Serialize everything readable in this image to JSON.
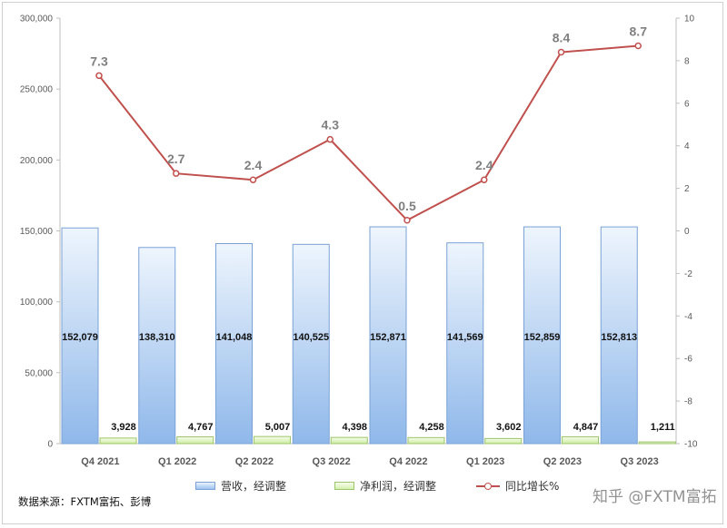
{
  "chart_data": {
    "type": "bar",
    "categories": [
      "Q4 2021",
      "Q1 2022",
      "Q2 2022",
      "Q3 2022",
      "Q4 2022",
      "Q1 2023",
      "Q2 2023",
      "Q3 2023"
    ],
    "series": [
      {
        "name": "营收，经调整",
        "type": "bar",
        "axis": "left",
        "values": [
          152079,
          138310,
          141048,
          140525,
          152871,
          141569,
          152859,
          152813
        ],
        "labels": [
          "152,079",
          "138,310",
          "141,048",
          "140,525",
          "152,871",
          "141,569",
          "152,859",
          "152,813"
        ],
        "color": "#9dc3f0"
      },
      {
        "name": "净利润，经调整",
        "type": "bar",
        "axis": "left",
        "values": [
          3928,
          4767,
          5007,
          4398,
          4258,
          3602,
          4847,
          1211
        ],
        "labels": [
          "3,928",
          "4,767",
          "5,007",
          "4,398",
          "4,258",
          "3,602",
          "4,847",
          "1,211"
        ],
        "color": "#d6f0b0"
      },
      {
        "name": "同比增长%",
        "type": "line",
        "axis": "right",
        "values": [
          7.3,
          2.7,
          2.4,
          4.3,
          0.5,
          2.4,
          8.4,
          8.7
        ],
        "labels": [
          "7.3",
          "2.7",
          "2.4",
          "4.3",
          "0.5",
          "2.4",
          "8.4",
          "8.7"
        ],
        "color": "#c0504d"
      }
    ],
    "y_left": {
      "min": 0,
      "max": 300000,
      "ticks": [
        "0",
        "50,000",
        "100,000",
        "150,000",
        "200,000",
        "250,000",
        "300,000"
      ]
    },
    "y_right": {
      "min": -10,
      "max": 10,
      "ticks": [
        "-10",
        "-8",
        "-6",
        "-4",
        "-2",
        "0",
        "2",
        "4",
        "6",
        "8",
        "10"
      ]
    },
    "grid": false,
    "legend_position": "bottom"
  },
  "legend": {
    "revenue": "营收，经调整",
    "profit": "净利润，经调整",
    "growth": "同比增长%"
  },
  "source_text": "数据来源：FXTM富拓、彭博",
  "watermark_text": "知乎 @FXTM富拓"
}
